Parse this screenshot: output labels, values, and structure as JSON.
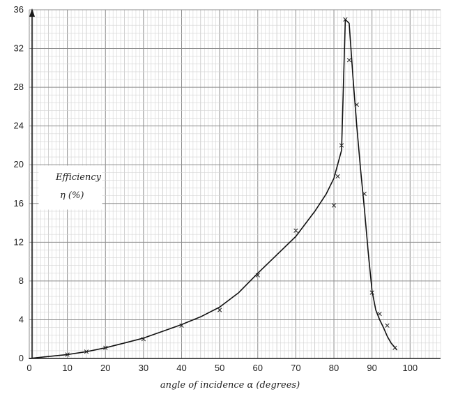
{
  "chart_data": {
    "type": "line",
    "title": "",
    "xlabel": "angle of incidence α (degrees)",
    "ylabel": "Efficiency η (%)",
    "xlim": [
      0,
      108
    ],
    "ylim": [
      0,
      36
    ],
    "x_ticks": [
      0,
      10,
      20,
      30,
      40,
      50,
      60,
      70,
      80,
      90,
      100
    ],
    "y_ticks": [
      0,
      4,
      8,
      12,
      16,
      20,
      24,
      28,
      32,
      36
    ],
    "grid": true,
    "series": [
      {
        "kind": "curve",
        "x": [
          0,
          5,
          10,
          15,
          20,
          25,
          30,
          35,
          40,
          45,
          50,
          55,
          60,
          65,
          70,
          75,
          78,
          80,
          82,
          83,
          84,
          85,
          86,
          87,
          88,
          89,
          90,
          91,
          92,
          93,
          94,
          95,
          96.5
        ],
        "y": [
          0,
          0.2,
          0.4,
          0.7,
          1.1,
          1.6,
          2.1,
          2.8,
          3.5,
          4.3,
          5.3,
          6.8,
          8.8,
          10.7,
          12.6,
          15.2,
          17.0,
          18.6,
          21.5,
          35.0,
          34.6,
          29.0,
          24.0,
          19.5,
          15.5,
          11.0,
          7.0,
          5.0,
          4.0,
          3.2,
          2.3,
          1.6,
          0.9
        ]
      },
      {
        "kind": "points",
        "x": [
          10,
          15,
          20,
          30,
          40,
          50,
          60,
          70,
          80,
          81,
          82,
          83,
          84,
          86,
          88,
          90,
          92,
          94,
          96
        ],
        "y": [
          0.4,
          0.7,
          1.1,
          2.0,
          3.4,
          5.0,
          8.6,
          13.2,
          15.8,
          18.8,
          22.0,
          35.0,
          30.8,
          26.2,
          17.0,
          6.8,
          4.6,
          3.4,
          1.1
        ]
      }
    ]
  }
}
